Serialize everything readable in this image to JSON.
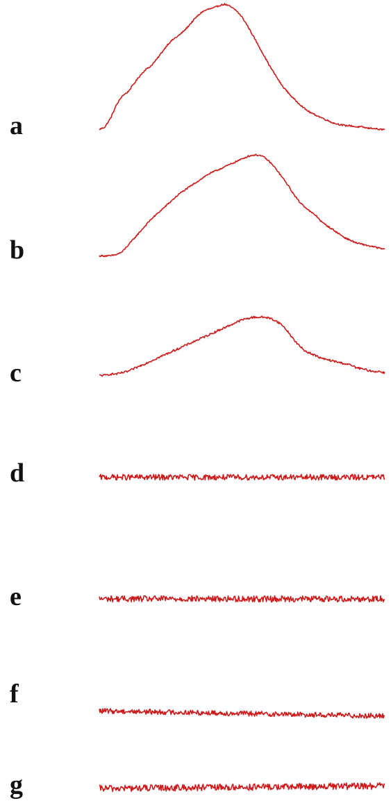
{
  "chart_data": {
    "type": "line",
    "line_color": "#cc1a1a",
    "panels": [
      {
        "label": "a",
        "x": [
          0,
          2,
          4,
          6,
          8,
          10,
          12,
          14,
          16,
          18,
          20,
          22,
          24,
          26,
          28,
          30,
          32,
          34,
          36,
          38,
          40,
          42,
          44,
          46,
          48,
          50,
          52,
          54,
          56,
          58,
          60,
          62,
          64,
          66,
          68,
          70,
          72,
          74,
          76,
          78,
          80,
          82,
          84,
          86,
          88,
          90,
          92,
          94,
          96,
          98,
          100
        ],
        "y": [
          0.03,
          0.05,
          0.12,
          0.22,
          0.29,
          0.32,
          0.38,
          0.44,
          0.49,
          0.52,
          0.57,
          0.63,
          0.69,
          0.73,
          0.76,
          0.8,
          0.85,
          0.9,
          0.94,
          0.96,
          0.97,
          0.99,
          1.0,
          0.98,
          0.95,
          0.9,
          0.83,
          0.75,
          0.67,
          0.59,
          0.51,
          0.44,
          0.37,
          0.32,
          0.27,
          0.23,
          0.19,
          0.16,
          0.14,
          0.12,
          0.1,
          0.08,
          0.07,
          0.06,
          0.06,
          0.05,
          0.05,
          0.04,
          0.04,
          0.03,
          0.03
        ],
        "noise": 0.006
      },
      {
        "label": "b",
        "x": [
          0,
          2,
          4,
          6,
          8,
          10,
          12,
          14,
          16,
          18,
          20,
          22,
          24,
          26,
          28,
          30,
          32,
          34,
          36,
          38,
          40,
          42,
          44,
          46,
          48,
          50,
          52,
          54,
          56,
          58,
          60,
          62,
          64,
          66,
          68,
          70,
          72,
          74,
          76,
          78,
          80,
          82,
          84,
          86,
          88,
          90,
          92,
          94,
          96,
          98,
          100
        ],
        "y": [
          0.02,
          0.02,
          0.02,
          0.03,
          0.05,
          0.1,
          0.15,
          0.2,
          0.25,
          0.3,
          0.34,
          0.38,
          0.42,
          0.46,
          0.5,
          0.53,
          0.56,
          0.59,
          0.62,
          0.65,
          0.67,
          0.69,
          0.71,
          0.73,
          0.75,
          0.77,
          0.79,
          0.8,
          0.8,
          0.78,
          0.74,
          0.69,
          0.63,
          0.57,
          0.5,
          0.44,
          0.4,
          0.36,
          0.33,
          0.28,
          0.25,
          0.22,
          0.19,
          0.16,
          0.14,
          0.12,
          0.11,
          0.1,
          0.09,
          0.08,
          0.07
        ],
        "noise": 0.006
      },
      {
        "label": "c",
        "x": [
          0,
          2,
          4,
          6,
          8,
          10,
          12,
          14,
          16,
          18,
          20,
          22,
          24,
          26,
          28,
          30,
          32,
          34,
          36,
          38,
          40,
          42,
          44,
          46,
          48,
          50,
          52,
          54,
          56,
          58,
          60,
          62,
          64,
          66,
          68,
          70,
          72,
          74,
          76,
          78,
          80,
          82,
          84,
          86,
          88,
          90,
          92,
          94,
          96,
          98,
          100
        ],
        "y": [
          0.02,
          0.02,
          0.03,
          0.03,
          0.04,
          0.05,
          0.07,
          0.09,
          0.11,
          0.13,
          0.15,
          0.17,
          0.19,
          0.21,
          0.23,
          0.25,
          0.27,
          0.29,
          0.31,
          0.33,
          0.35,
          0.37,
          0.39,
          0.41,
          0.43,
          0.45,
          0.46,
          0.47,
          0.47,
          0.47,
          0.46,
          0.44,
          0.41,
          0.36,
          0.3,
          0.25,
          0.21,
          0.19,
          0.17,
          0.15,
          0.14,
          0.13,
          0.12,
          0.11,
          0.1,
          0.08,
          0.07,
          0.06,
          0.05,
          0.05,
          0.04
        ],
        "noise": 0.008
      },
      {
        "label": "d",
        "x": [
          0,
          100
        ],
        "y": [
          0.0,
          0.0
        ],
        "noise": 0.022
      },
      {
        "label": "e",
        "x": [
          0,
          100
        ],
        "y": [
          0.0,
          0.0
        ],
        "noise": 0.024
      },
      {
        "label": "f",
        "x": [
          0,
          100
        ],
        "y": [
          0.02,
          -0.02
        ],
        "noise": 0.02
      },
      {
        "label": "g",
        "x": [
          0,
          100
        ],
        "y": [
          0.0,
          0.02
        ],
        "noise": 0.026
      }
    ]
  }
}
